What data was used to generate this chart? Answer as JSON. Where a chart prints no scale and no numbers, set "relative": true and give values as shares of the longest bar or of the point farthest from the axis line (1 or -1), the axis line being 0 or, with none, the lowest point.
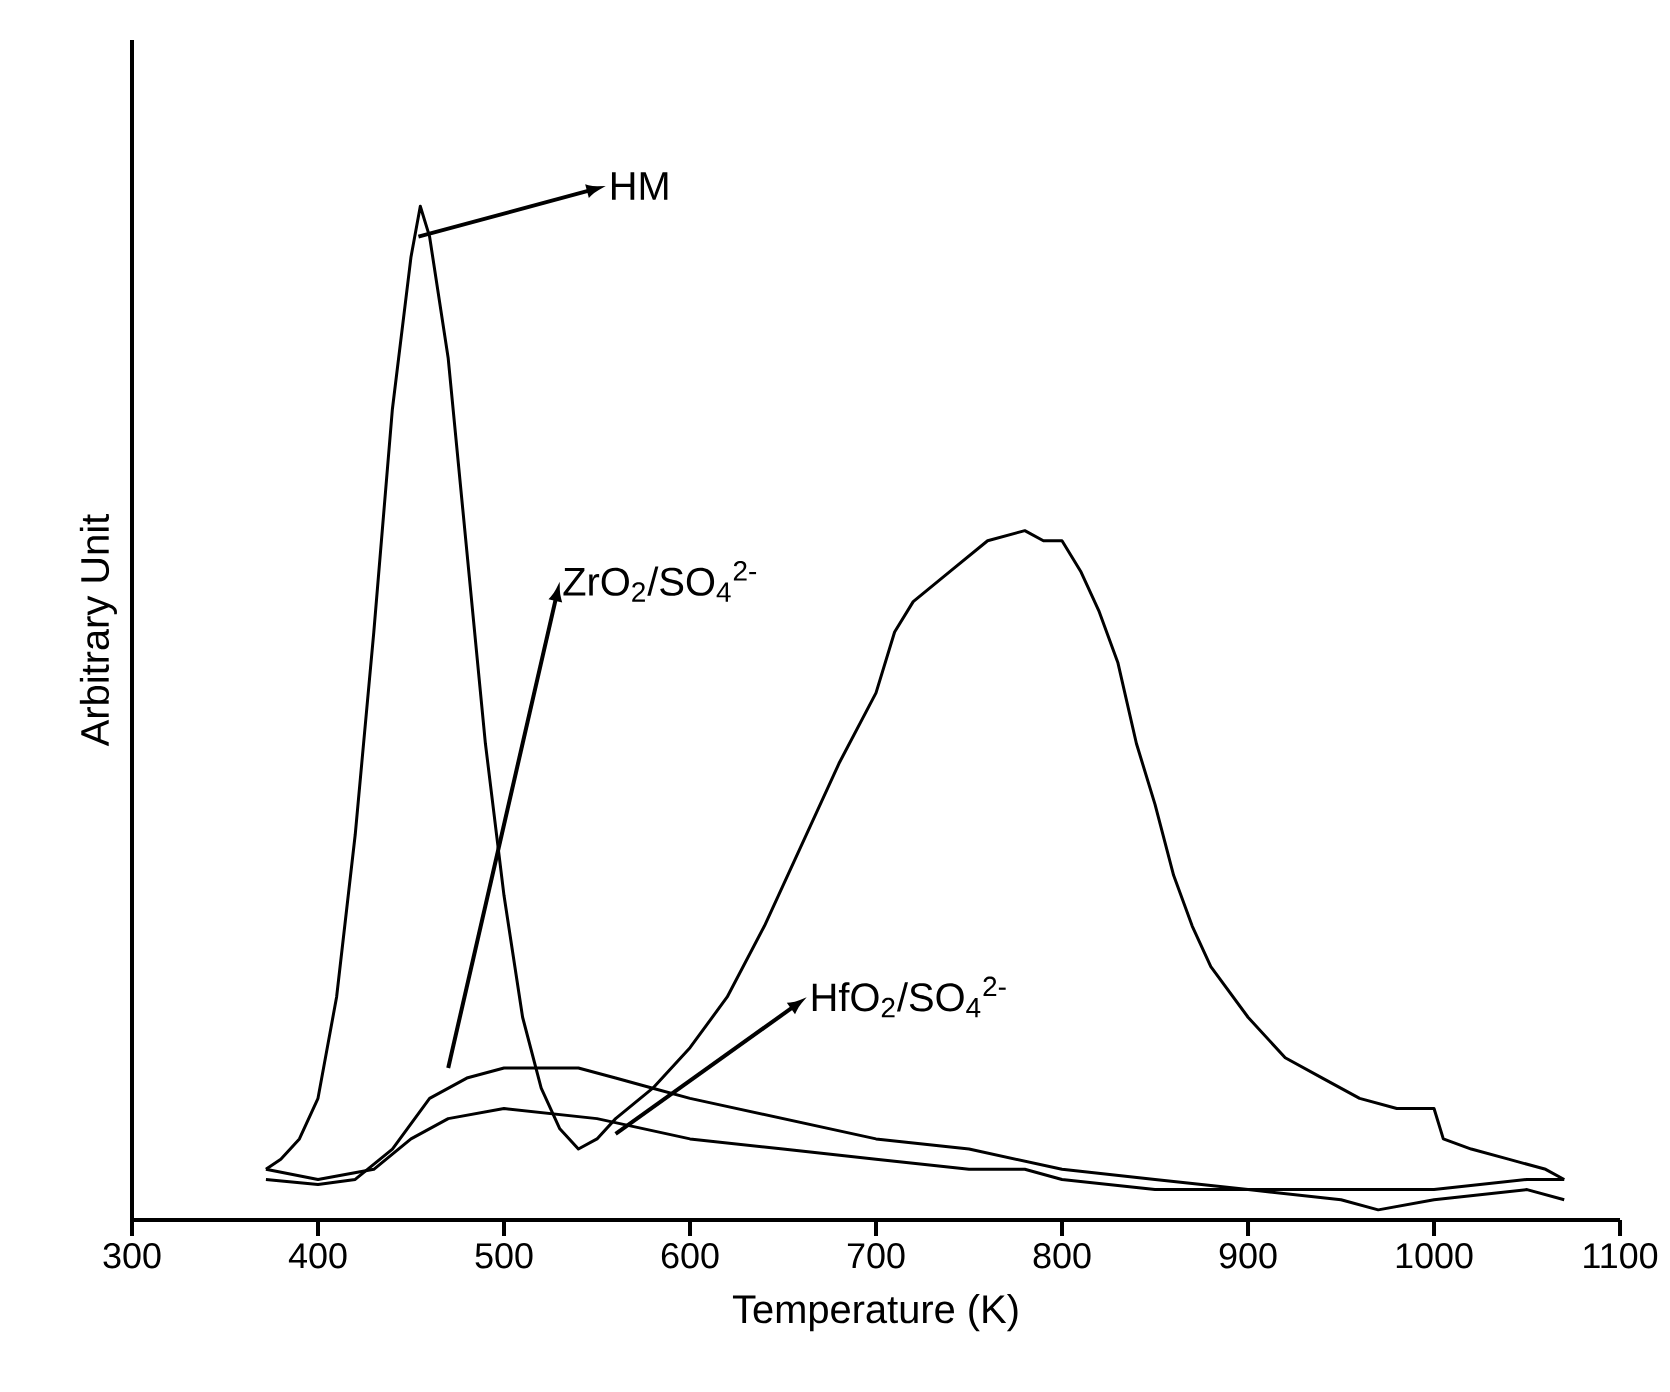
{
  "chart_data": {
    "type": "line",
    "relative": true,
    "xlabel": "Temperature (K)",
    "ylabel": "Arbitrary Unit",
    "xlim": [
      300,
      1100
    ],
    "xticks": [
      300,
      400,
      500,
      600,
      700,
      800,
      900,
      1000,
      1100
    ],
    "grid": false,
    "legend": "top",
    "marker": "none",
    "line_style": "solid",
    "series": [
      {
        "name": "HM",
        "color": "#000000",
        "x": [
          372,
          380,
          390,
          400,
          410,
          420,
          430,
          440,
          450,
          455,
          460,
          470,
          480,
          490,
          500,
          510,
          520,
          530,
          540,
          550,
          560,
          580,
          600,
          620,
          640,
          660,
          680,
          700,
          710,
          720,
          740,
          760,
          780,
          790,
          800,
          810,
          820,
          830,
          840,
          850,
          860,
          870,
          880,
          900,
          920,
          940,
          960,
          980,
          1000,
          1005,
          1020,
          1040,
          1060,
          1070
        ],
        "values": [
          0.05,
          0.06,
          0.08,
          0.12,
          0.22,
          0.38,
          0.58,
          0.8,
          0.95,
          1,
          0.97,
          0.85,
          0.66,
          0.47,
          0.32,
          0.2,
          0.13,
          0.09,
          0.07,
          0.08,
          0.1,
          0.13,
          0.17,
          0.22,
          0.29,
          0.37,
          0.45,
          0.52,
          0.58,
          0.61,
          0.64,
          0.67,
          0.68,
          0.67,
          0.67,
          0.64,
          0.6,
          0.55,
          0.47,
          0.41,
          0.34,
          0.29,
          0.25,
          0.2,
          0.16,
          0.14,
          0.12,
          0.11,
          0.11,
          0.08,
          0.07,
          0.06,
          0.05,
          0.04
        ]
      },
      {
        "name": "ZrO$_{2}$/SO$_{4}$$^{2-}$",
        "color": "#000000",
        "x": [
          372,
          400,
          420,
          440,
          460,
          480,
          500,
          520,
          540,
          560,
          580,
          600,
          650,
          700,
          750,
          800,
          850,
          900,
          950,
          1000,
          1050,
          1070
        ],
        "values": [
          0.04,
          0.035,
          0.04,
          0.07,
          0.12,
          0.14,
          0.15,
          0.15,
          0.15,
          0.14,
          0.13,
          0.12,
          0.1,
          0.08,
          0.07,
          0.05,
          0.04,
          0.03,
          0.03,
          0.03,
          0.04,
          0.04
        ]
      },
      {
        "name": "HfO$_{2}$/SO$_{4}$$^{2-}$",
        "color": "#000000",
        "x": [
          372,
          400,
          430,
          450,
          470,
          500,
          550,
          600,
          650,
          700,
          750,
          780,
          800,
          850,
          900,
          950,
          970,
          1000,
          1050,
          1070
        ],
        "values": [
          0.05,
          0.04,
          0.05,
          0.08,
          0.1,
          0.11,
          0.1,
          0.08,
          0.07,
          0.06,
          0.05,
          0.05,
          0.04,
          0.03,
          0.03,
          0.02,
          0.01,
          0.02,
          0.03,
          0.02
        ]
      }
    ]
  }
}
